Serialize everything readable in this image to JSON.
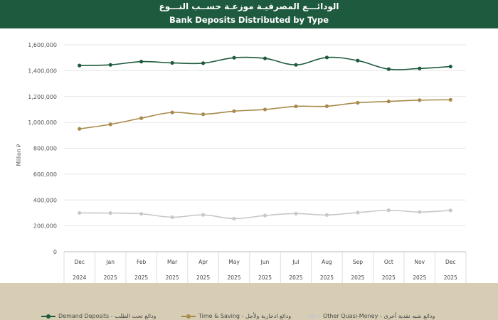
{
  "header": {
    "title_ar": "الودائـــع المصرفيـة موزعـة حســب النـــوع",
    "title_en": "Bank Deposits Distributed by Type"
  },
  "chart_data": {
    "type": "line",
    "title": "Bank Deposits Distributed by Type",
    "ylabel": "Million ⃁",
    "ylim": [
      0,
      1600000
    ],
    "yticks": [
      "0",
      "200,000",
      "400,000",
      "600,000",
      "800,000",
      "1,000,000",
      "1,200,000",
      "1,400,000",
      "1,600,000"
    ],
    "categories": [
      "Dec",
      "Jan",
      "Feb",
      "Mar",
      "Apr",
      "May",
      "Jun",
      "Jul",
      "Aug",
      "Sep",
      "Oct",
      "Nov",
      "Dec"
    ],
    "years": [
      "2024",
      "2025",
      "2025",
      "2025",
      "2025",
      "2025",
      "2025",
      "2025",
      "2025",
      "2025",
      "2025",
      "2025",
      "2025"
    ],
    "series": [
      {
        "name": "Demand Deposits - ودائع تحت الطلب",
        "color": "#1e5a3d",
        "values": [
          1440000,
          1445000,
          1470000,
          1460000,
          1458000,
          1500000,
          1495000,
          1445000,
          1502000,
          1478000,
          1412000,
          1417000,
          1432000
        ]
      },
      {
        "name": "Time & Saving - ودائع ادخارية ولأجل",
        "color": "#a88a4a",
        "values": [
          950000,
          985000,
          1033000,
          1077000,
          1063000,
          1087000,
          1100000,
          1124000,
          1125000,
          1152000,
          1162000,
          1172000,
          1175000
        ]
      },
      {
        "name": "Other Quasi-Money - ودائع شبه نقدية أخرى",
        "color": "#c8c8c8",
        "values": [
          300000,
          299000,
          293000,
          267000,
          285000,
          256000,
          280000,
          295000,
          284000,
          303000,
          321000,
          307000,
          320000
        ]
      }
    ]
  }
}
